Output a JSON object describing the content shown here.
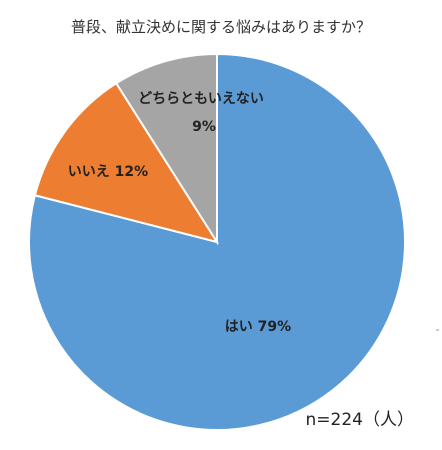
{
  "chart_data": {
    "type": "pie",
    "title": "普段、献立決めに関する悩みはありますか？",
    "categories": [
      "はい",
      "いいえ",
      "どちらともいえない"
    ],
    "values": [
      79,
      12,
      9
    ],
    "unit": "%",
    "colors": [
      "#5b9bd5",
      "#ed7d31",
      "#a5a5a5"
    ],
    "labels": [
      "はい 79%",
      "いいえ 12%",
      "どちらともいえない",
      "9%"
    ],
    "start_angle_deg": 0,
    "direction": "clockwise",
    "legend": "none",
    "note": "n=224（人）"
  }
}
